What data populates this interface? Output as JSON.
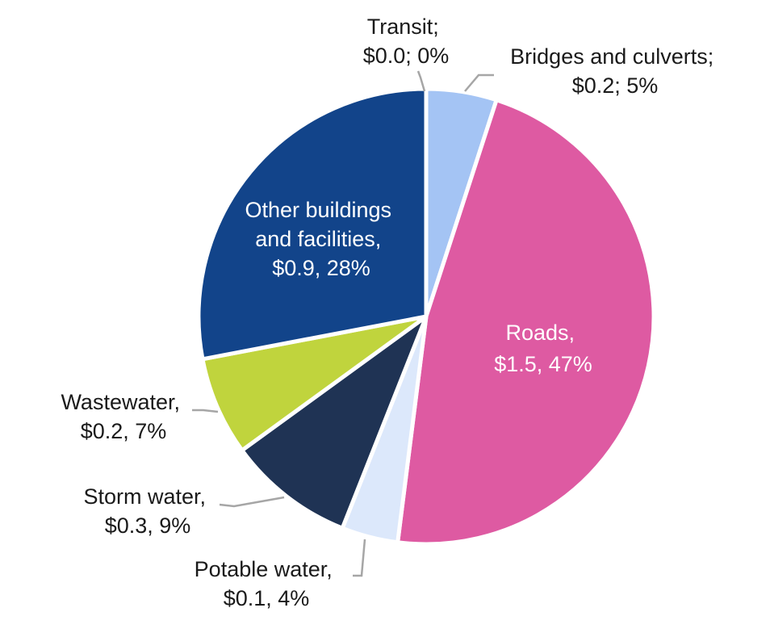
{
  "chart_data": {
    "type": "pie",
    "title": "",
    "slices": [
      {
        "name": "Transit",
        "value": 0.0,
        "percent": 0,
        "color": "#f2f2f2",
        "label_lines": [
          "Transit;",
          "$0.0; 0%"
        ]
      },
      {
        "name": "Bridges and culverts",
        "value": 0.2,
        "percent": 5,
        "color": "#a4c4f4",
        "label_lines": [
          "Bridges and culverts;",
          "$0.2; 5%"
        ]
      },
      {
        "name": "Roads",
        "value": 1.5,
        "percent": 47,
        "color": "#de5aa2",
        "label_lines": [
          "Roads,",
          "$1.5, 47%"
        ]
      },
      {
        "name": "Potable water",
        "value": 0.1,
        "percent": 4,
        "color": "#dce8fb",
        "label_lines": [
          "Potable water,",
          "$0.1, 4%"
        ]
      },
      {
        "name": "Storm water",
        "value": 0.3,
        "percent": 9,
        "color": "#1f3354",
        "label_lines": [
          "Storm water,",
          "$0.3, 9%"
        ]
      },
      {
        "name": "Wastewater",
        "value": 0.2,
        "percent": 7,
        "color": "#c0d43d",
        "label_lines": [
          "Wastewater,",
          "$0.2, 7%"
        ]
      },
      {
        "name": "Other buildings and facilities",
        "value": 0.9,
        "percent": 28,
        "color": "#12448a",
        "label_lines": [
          "Other buildings",
          "and facilities,",
          "$0.9, 28%"
        ]
      }
    ]
  }
}
